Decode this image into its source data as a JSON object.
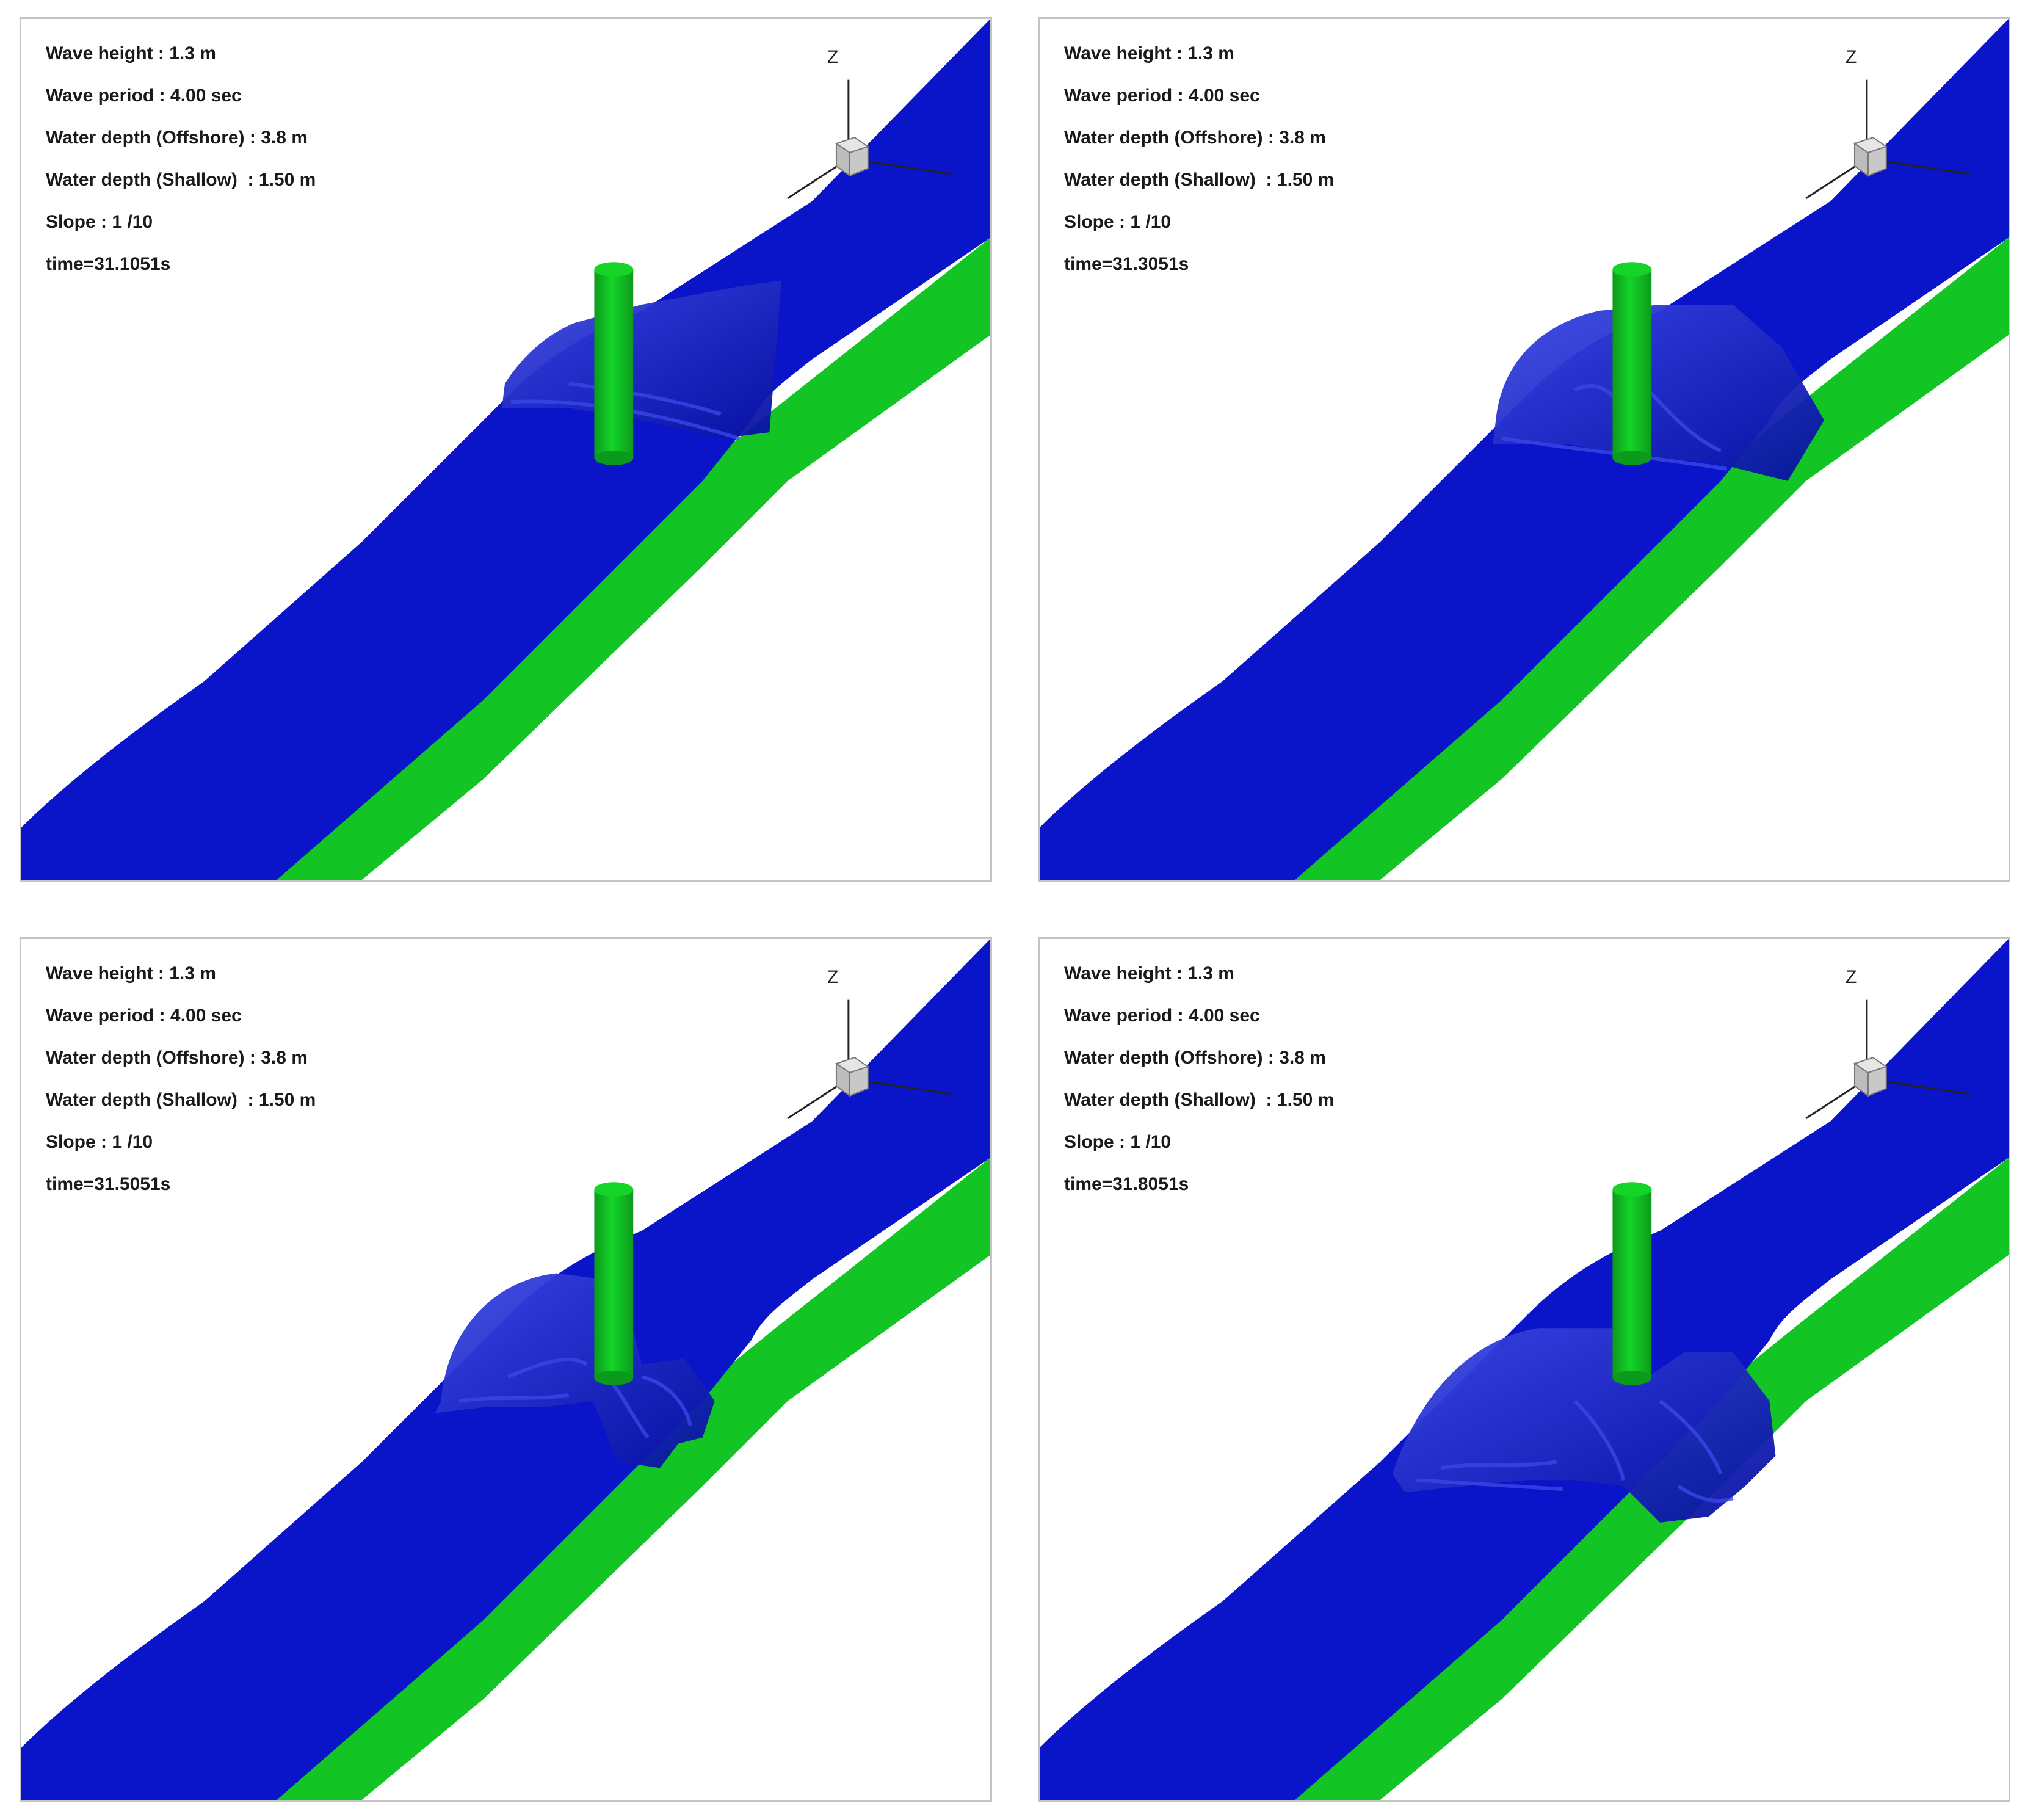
{
  "colors": {
    "water": "#0a14c8",
    "water_shade": "#0610a0",
    "water_highlight": "#3a46e6",
    "bed": "#12c424",
    "pile": "#14d428",
    "pile_shade": "#0c9a1c",
    "frame": "#c4c4c4",
    "cube": "#c8c8c8"
  },
  "icons": {
    "orientation": "orientation-cube-icon"
  },
  "panels": [
    {
      "params": [
        "Wave height : 1.3 m",
        "Wave period : 4.00 sec",
        "Water depth (Offshore) : 3.8 m",
        "Water depth (Shallow)  : 1.50 m",
        "Slope : 1 /10",
        "time=31.1051s"
      ],
      "axis_label": "Z"
    },
    {
      "params": [
        "Wave height : 1.3 m",
        "Wave period : 4.00 sec",
        "Water depth (Offshore) : 3.8 m",
        "Water depth (Shallow)  : 1.50 m",
        "Slope : 1 /10",
        "time=31.3051s"
      ],
      "axis_label": "Z"
    },
    {
      "params": [
        "Wave height : 1.3 m",
        "Wave period : 4.00 sec",
        "Water depth (Offshore) : 3.8 m",
        "Water depth (Shallow)  : 1.50 m",
        "Slope : 1 /10",
        "time=31.5051s"
      ],
      "axis_label": "Z"
    },
    {
      "params": [
        "Wave height : 1.3 m",
        "Wave period : 4.00 sec",
        "Water depth (Offshore) : 3.8 m",
        "Water depth (Shallow)  : 1.50 m",
        "Slope : 1 /10",
        "time=31.8051s"
      ],
      "axis_label": "Z"
    }
  ]
}
